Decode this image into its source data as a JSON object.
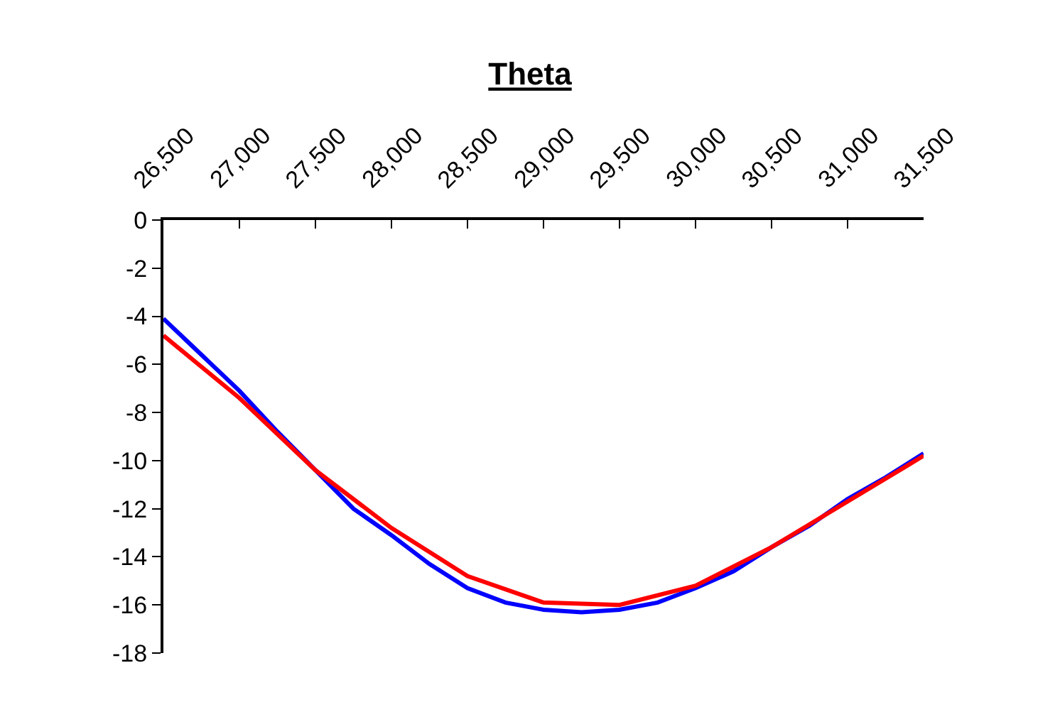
{
  "chart_data": {
    "type": "line",
    "title": "Theta",
    "series": [
      {
        "color": "#0000ff",
        "x": [
          26500,
          26750,
          27000,
          27250,
          27500,
          27750,
          28000,
          28250,
          28500,
          28750,
          29000,
          29250,
          29500,
          29750,
          30000,
          30250,
          30500,
          30750,
          31000,
          31250,
          31500
        ],
        "values": [
          -4.1,
          -5.6,
          -7.1,
          -8.8,
          -10.4,
          -12.0,
          -13.1,
          -14.3,
          -15.3,
          -15.9,
          -16.2,
          -16.3,
          -16.2,
          -15.9,
          -15.3,
          -14.6,
          -13.6,
          -12.7,
          -11.6,
          -10.7,
          -9.7
        ]
      },
      {
        "color": "#ff0000",
        "x": [
          26500,
          27000,
          27500,
          28000,
          28500,
          29000,
          29500,
          30000,
          30500,
          31000,
          31500
        ],
        "values": [
          -4.8,
          -7.4,
          -10.4,
          -12.8,
          -14.8,
          -15.9,
          -16.0,
          -15.2,
          -13.6,
          -11.7,
          -9.8
        ]
      }
    ],
    "xlim": [
      26500,
      31500
    ],
    "xticks": [
      {
        "value": 26500,
        "label": "26,500"
      },
      {
        "value": 27000,
        "label": "27,000"
      },
      {
        "value": 27500,
        "label": "27,500"
      },
      {
        "value": 28000,
        "label": "28,000"
      },
      {
        "value": 28500,
        "label": "28,500"
      },
      {
        "value": 29000,
        "label": "29,000"
      },
      {
        "value": 29500,
        "label": "29,500"
      },
      {
        "value": 30000,
        "label": "30,000"
      },
      {
        "value": 30500,
        "label": "30,500"
      },
      {
        "value": 31000,
        "label": "31,000"
      },
      {
        "value": 31500,
        "label": "31,500"
      }
    ],
    "ylim": [
      -18,
      0
    ],
    "yticks": [
      0,
      -2,
      -4,
      -6,
      -8,
      -10,
      -12,
      -14,
      -16,
      -18
    ],
    "marker": "none",
    "line_style": "solid"
  }
}
